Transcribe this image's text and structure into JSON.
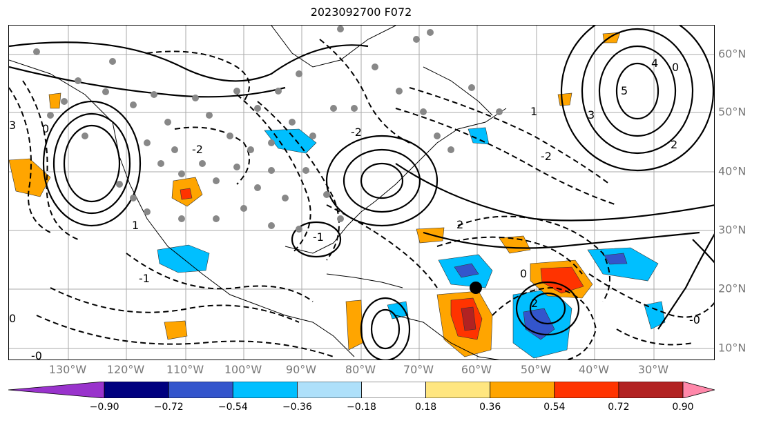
{
  "title": "2023092700 F072",
  "lon_labels": [
    "130°W",
    "120°W",
    "110°W",
    "100°W",
    "90°W",
    "80°W",
    "70°W",
    "60°W",
    "50°W",
    "40°W",
    "30°W"
  ],
  "lat_labels": [
    "60°N",
    "50°N",
    "40°N",
    "30°N",
    "20°N",
    "10°N"
  ],
  "colorbar": {
    "ticks": [
      "−0.90",
      "−0.72",
      "−0.54",
      "−0.36",
      "−0.18",
      "0.18",
      "0.36",
      "0.54",
      "0.72",
      "0.90"
    ],
    "colors": [
      "#9933cc",
      "#00007f",
      "#3355cc",
      "#00bfff",
      "#aee0fa",
      "#ffffff",
      "#ffe680",
      "#ffa500",
      "#ff3300",
      "#b22222",
      "#ff88aa"
    ]
  },
  "contour_labels": [
    "0",
    "4",
    "5",
    "3",
    "2",
    "1",
    "-1",
    "-2",
    "-0",
    "0",
    "-0",
    "2",
    "3",
    "1",
    "-1",
    "0",
    "2",
    "-2",
    "-2",
    "0"
  ],
  "marker": {
    "color": "#000000"
  }
}
